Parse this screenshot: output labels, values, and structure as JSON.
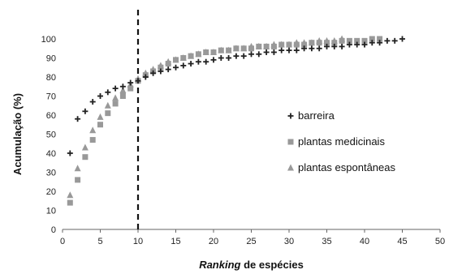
{
  "chart_data": {
    "type": "scatter",
    "xlabel_italic": "Ranking",
    "xlabel_rest": " de espécies",
    "ylabel": "Acumulação (%)",
    "xlim": [
      0,
      50
    ],
    "ylim": [
      0,
      100
    ],
    "x_ticks": [
      0,
      5,
      10,
      15,
      20,
      25,
      30,
      35,
      40,
      45,
      50
    ],
    "y_ticks": [
      0,
      10,
      20,
      30,
      40,
      50,
      60,
      70,
      80,
      90,
      100
    ],
    "grid": false,
    "legend_position": "right",
    "reference_line": {
      "x": 10,
      "style": "dashed",
      "color": "#111111"
    },
    "series": [
      {
        "name": "barreira",
        "marker": "plus",
        "color": "#222222",
        "x": [
          1,
          2,
          3,
          4,
          5,
          6,
          7,
          8,
          9,
          10,
          11,
          12,
          13,
          14,
          15,
          16,
          17,
          18,
          19,
          20,
          21,
          22,
          23,
          24,
          25,
          26,
          27,
          28,
          29,
          30,
          31,
          32,
          33,
          34,
          35,
          36,
          37,
          38,
          39,
          40,
          41,
          42,
          43,
          44,
          45
        ],
        "y": [
          40,
          58,
          62,
          67,
          70,
          72,
          74,
          75,
          77,
          78,
          80,
          82,
          83,
          84,
          85,
          86,
          87,
          88,
          88,
          89,
          90,
          90,
          91,
          91,
          92,
          92,
          93,
          93,
          94,
          94,
          94,
          95,
          95,
          95,
          96,
          96,
          96,
          97,
          97,
          97,
          98,
          98,
          99,
          99,
          100
        ]
      },
      {
        "name": "plantas medicinais",
        "marker": "square",
        "color": "#999999",
        "x": [
          1,
          2,
          3,
          4,
          5,
          6,
          7,
          8,
          9,
          10,
          11,
          12,
          13,
          14,
          15,
          16,
          17,
          18,
          19,
          20,
          21,
          22,
          23,
          24,
          25,
          26,
          27,
          28,
          29,
          30,
          31,
          32,
          33,
          34,
          35,
          36,
          37,
          38,
          39,
          40,
          41,
          42
        ],
        "y": [
          14,
          26,
          38,
          47,
          55,
          61,
          66,
          70,
          74,
          78,
          81,
          83,
          85,
          87,
          89,
          90,
          91,
          92,
          93,
          93,
          94,
          94,
          95,
          95,
          95,
          96,
          96,
          96,
          97,
          97,
          97,
          97,
          98,
          98,
          98,
          98,
          99,
          99,
          99,
          99,
          100,
          100
        ]
      },
      {
        "name": "plantas espontâneas",
        "marker": "triangle",
        "color": "#999999",
        "x": [
          1,
          2,
          3,
          4,
          5,
          6,
          7,
          8,
          9,
          10,
          11,
          12,
          13,
          14,
          15,
          16,
          17,
          18,
          19,
          20,
          21,
          22,
          23,
          24,
          25,
          26,
          27,
          28,
          29,
          30,
          31,
          32,
          33,
          34,
          35,
          36,
          37
        ],
        "y": [
          18,
          32,
          43,
          52,
          59,
          65,
          69,
          73,
          76,
          79,
          82,
          84,
          86,
          88,
          89,
          90,
          91,
          92,
          93,
          93,
          94,
          94,
          95,
          95,
          96,
          96,
          96,
          97,
          97,
          97,
          98,
          98,
          98,
          99,
          99,
          99,
          100
        ]
      }
    ]
  }
}
